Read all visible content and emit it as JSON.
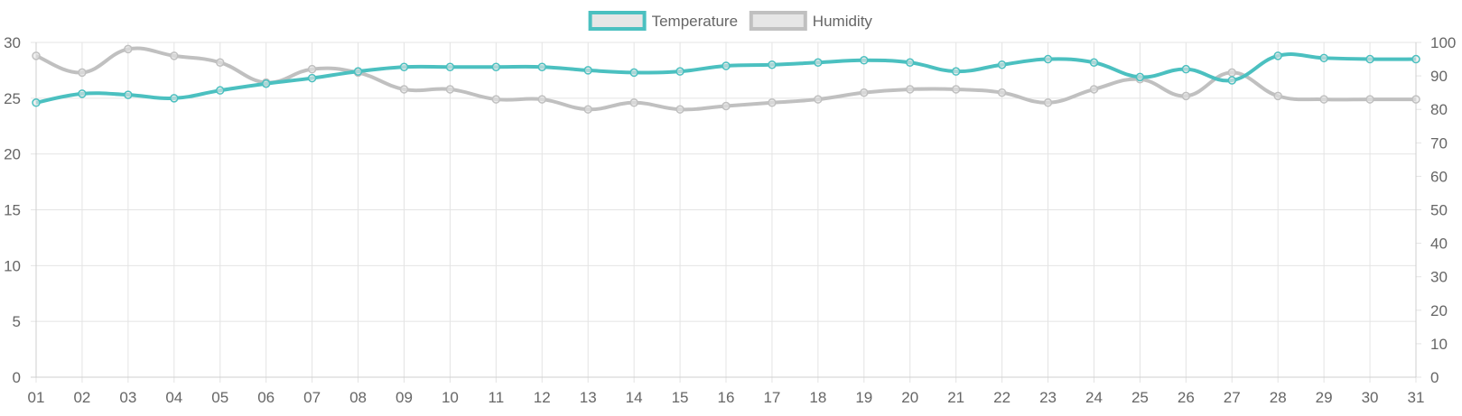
{
  "chart_data": {
    "type": "line",
    "x": [
      "01",
      "02",
      "03",
      "04",
      "05",
      "06",
      "07",
      "08",
      "09",
      "10",
      "11",
      "12",
      "13",
      "14",
      "15",
      "16",
      "17",
      "18",
      "19",
      "20",
      "21",
      "22",
      "23",
      "24",
      "25",
      "26",
      "27",
      "28",
      "29",
      "30",
      "31"
    ],
    "legend_position": "top-center",
    "grid": true,
    "series": [
      {
        "name": "Temperature",
        "axis": "left",
        "color": "#4bc0c0",
        "values": [
          24.6,
          25.4,
          25.3,
          25.0,
          25.7,
          26.3,
          26.8,
          27.4,
          27.8,
          27.8,
          27.8,
          27.8,
          27.5,
          27.3,
          27.4,
          27.9,
          28.0,
          28.2,
          28.4,
          28.2,
          27.4,
          28.0,
          28.5,
          28.2,
          26.9,
          27.6,
          26.6,
          28.8,
          28.6,
          28.5,
          28.5
        ]
      },
      {
        "name": "Humidity",
        "axis": "right",
        "color": "#c0c0c0",
        "values": [
          96,
          91,
          98,
          96,
          94,
          88,
          92,
          91,
          86,
          86,
          83,
          83,
          80,
          82,
          80,
          81,
          82,
          83,
          85,
          86,
          86,
          85,
          82,
          86,
          89,
          84,
          91,
          84,
          83,
          83,
          83
        ]
      }
    ],
    "y_left": {
      "min": 0,
      "max": 30,
      "ticks": [
        "0",
        "5",
        "10",
        "15",
        "20",
        "25",
        "30"
      ]
    },
    "y_right": {
      "min": 0,
      "max": 100,
      "ticks": [
        "0",
        "10",
        "20",
        "30",
        "40",
        "50",
        "60",
        "70",
        "80",
        "90",
        "100"
      ]
    },
    "xlabel": "",
    "ylabel": ""
  }
}
